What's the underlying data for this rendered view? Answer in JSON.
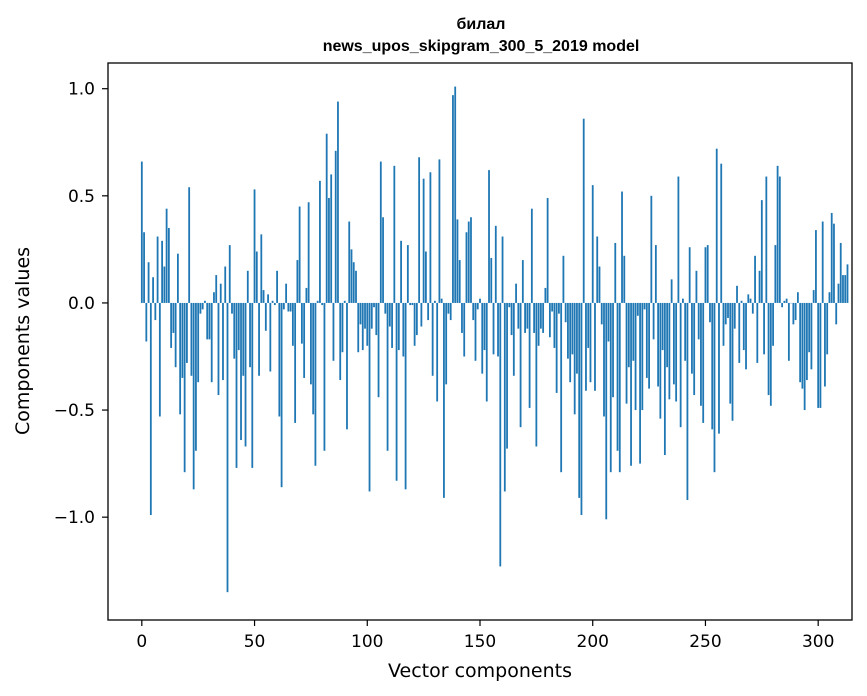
{
  "chart_data": {
    "type": "bar",
    "title": "билал",
    "subtitle": "news_upos_skipgram_300_5_2019 model",
    "xlabel": "Vector components",
    "ylabel": "Components values",
    "xlim": [
      -15,
      315
    ],
    "ylim": [
      -1.48,
      1.12
    ],
    "xticks": [
      0,
      50,
      100,
      150,
      200,
      250,
      300
    ],
    "yticks": [
      -1.0,
      -0.5,
      0.0,
      0.5,
      1.0
    ],
    "ytick_labels": [
      "−1.0",
      "−0.5",
      "0.0",
      "0.5",
      "1.0"
    ],
    "bar_color": "#1f77b4",
    "values": [
      0.66,
      0.33,
      -0.18,
      0.19,
      -0.99,
      0.12,
      -0.08,
      0.31,
      -0.53,
      0.29,
      0.17,
      0.44,
      0.35,
      -0.21,
      -0.14,
      -0.3,
      0.23,
      -0.52,
      -0.35,
      -0.79,
      -0.28,
      0.54,
      -0.34,
      -0.87,
      -0.69,
      -0.37,
      -0.05,
      -0.03,
      0.01,
      -0.17,
      -0.17,
      -0.37,
      0.05,
      0.13,
      -0.43,
      0.09,
      -0.36,
      0.17,
      -1.35,
      0.27,
      -0.05,
      -0.26,
      -0.77,
      -0.22,
      -0.64,
      -0.34,
      -0.67,
      0.15,
      -0.3,
      -0.77,
      0.53,
      0.24,
      -0.34,
      0.32,
      0.06,
      -0.13,
      0.04,
      -0.32,
      0.01,
      -0.01,
      0.15,
      -0.53,
      -0.86,
      -0.03,
      0.09,
      -0.04,
      -0.04,
      -0.2,
      -0.56,
      0.2,
      0.45,
      -0.19,
      -0.35,
      0.07,
      0.47,
      -0.38,
      -0.52,
      -0.76,
      0.01,
      0.57,
      -0.01,
      -0.69,
      0.79,
      0.49,
      0.6,
      -0.27,
      0.71,
      0.94,
      -0.36,
      -0.23,
      0.01,
      -0.59,
      0.38,
      0.25,
      0.19,
      0.15,
      -0.23,
      -0.1,
      -0.22,
      -0.12,
      -0.2,
      -0.88,
      -0.12,
      -0.02,
      -0.15,
      -0.44,
      0.66,
      0.4,
      -0.05,
      -0.69,
      -0.11,
      -0.21,
      0.64,
      -0.83,
      -0.22,
      0.29,
      -0.25,
      -0.87,
      0.27,
      -0.01,
      -0.01,
      -0.2,
      -0.15,
      0.68,
      -0.11,
      0.58,
      0.24,
      -0.08,
      0.61,
      -0.34,
      0.01,
      -0.46,
      0.67,
      0.02,
      -0.91,
      -0.38,
      -0.05,
      -0.08,
      0.97,
      1.01,
      0.39,
      0.2,
      -0.14,
      -0.25,
      0.33,
      0.38,
      0.4,
      -0.08,
      -0.27,
      -0.03,
      0.02,
      -0.33,
      -0.22,
      -0.46,
      0.62,
      0.21,
      -0.24,
      0.36,
      -0.25,
      -1.23,
      0.31,
      -0.88,
      -0.68,
      -0.02,
      -0.15,
      -0.34,
      0.09,
      -0.12,
      -0.58,
      0.2,
      -0.14,
      -0.12,
      -0.49,
      0.44,
      -0.14,
      -0.67,
      -0.2,
      -0.12,
      -0.14,
      0.07,
      0.49,
      -0.16,
      -0.04,
      -0.21,
      -0.42,
      -0.05,
      -0.79,
      0.22,
      -0.09,
      -0.26,
      -0.37,
      -0.24,
      -0.52,
      -0.33,
      -0.91,
      -0.99,
      0.86,
      -0.41,
      -0.21,
      -0.37,
      0.55,
      -0.41,
      0.31,
      0.17,
      -0.1,
      -0.53,
      -1.01,
      -0.18,
      -0.79,
      -0.44,
      0.28,
      -0.69,
      -0.79,
      0.52,
      0.22,
      -0.47,
      -0.3,
      -0.76,
      -0.27,
      -0.5,
      -0.06,
      -0.75,
      -0.5,
      -0.03,
      -0.35,
      -0.4,
      0.5,
      -0.17,
      0.27,
      -0.39,
      -0.54,
      -0.22,
      -0.71,
      -0.3,
      -0.45,
      0.11,
      -0.38,
      -0.46,
      0.59,
      -0.58,
      0.02,
      -0.27,
      -0.92,
      0.26,
      -0.33,
      -0.43,
      0.15,
      -0.17,
      -0.48,
      -0.56,
      0.26,
      0.27,
      -0.09,
      -0.59,
      -0.79,
      0.72,
      -0.61,
      0.65,
      -0.2,
      -0.1,
      -0.07,
      -0.47,
      -0.55,
      -0.12,
      0.08,
      -0.28,
      0.01,
      -0.22,
      -0.31,
      0.04,
      0.02,
      -0.05,
      0.22,
      -0.28,
      0.15,
      0.48,
      -0.24,
      0.59,
      -0.43,
      -0.48,
      -0.2,
      0.27,
      0.64,
      0.59,
      -0.02,
      0.01,
      0.02,
      -0.27,
      0.0,
      -0.1,
      -0.08,
      0.05,
      -0.37,
      -0.4,
      -0.5,
      -0.36,
      -0.23,
      -0.31,
      0.06,
      0.34,
      -0.49,
      -0.49,
      0.38,
      -0.39,
      -0.24,
      0.05,
      0.42,
      0.37,
      -0.1,
      0.09,
      0.28,
      0.13,
      0.13,
      0.18
    ]
  }
}
